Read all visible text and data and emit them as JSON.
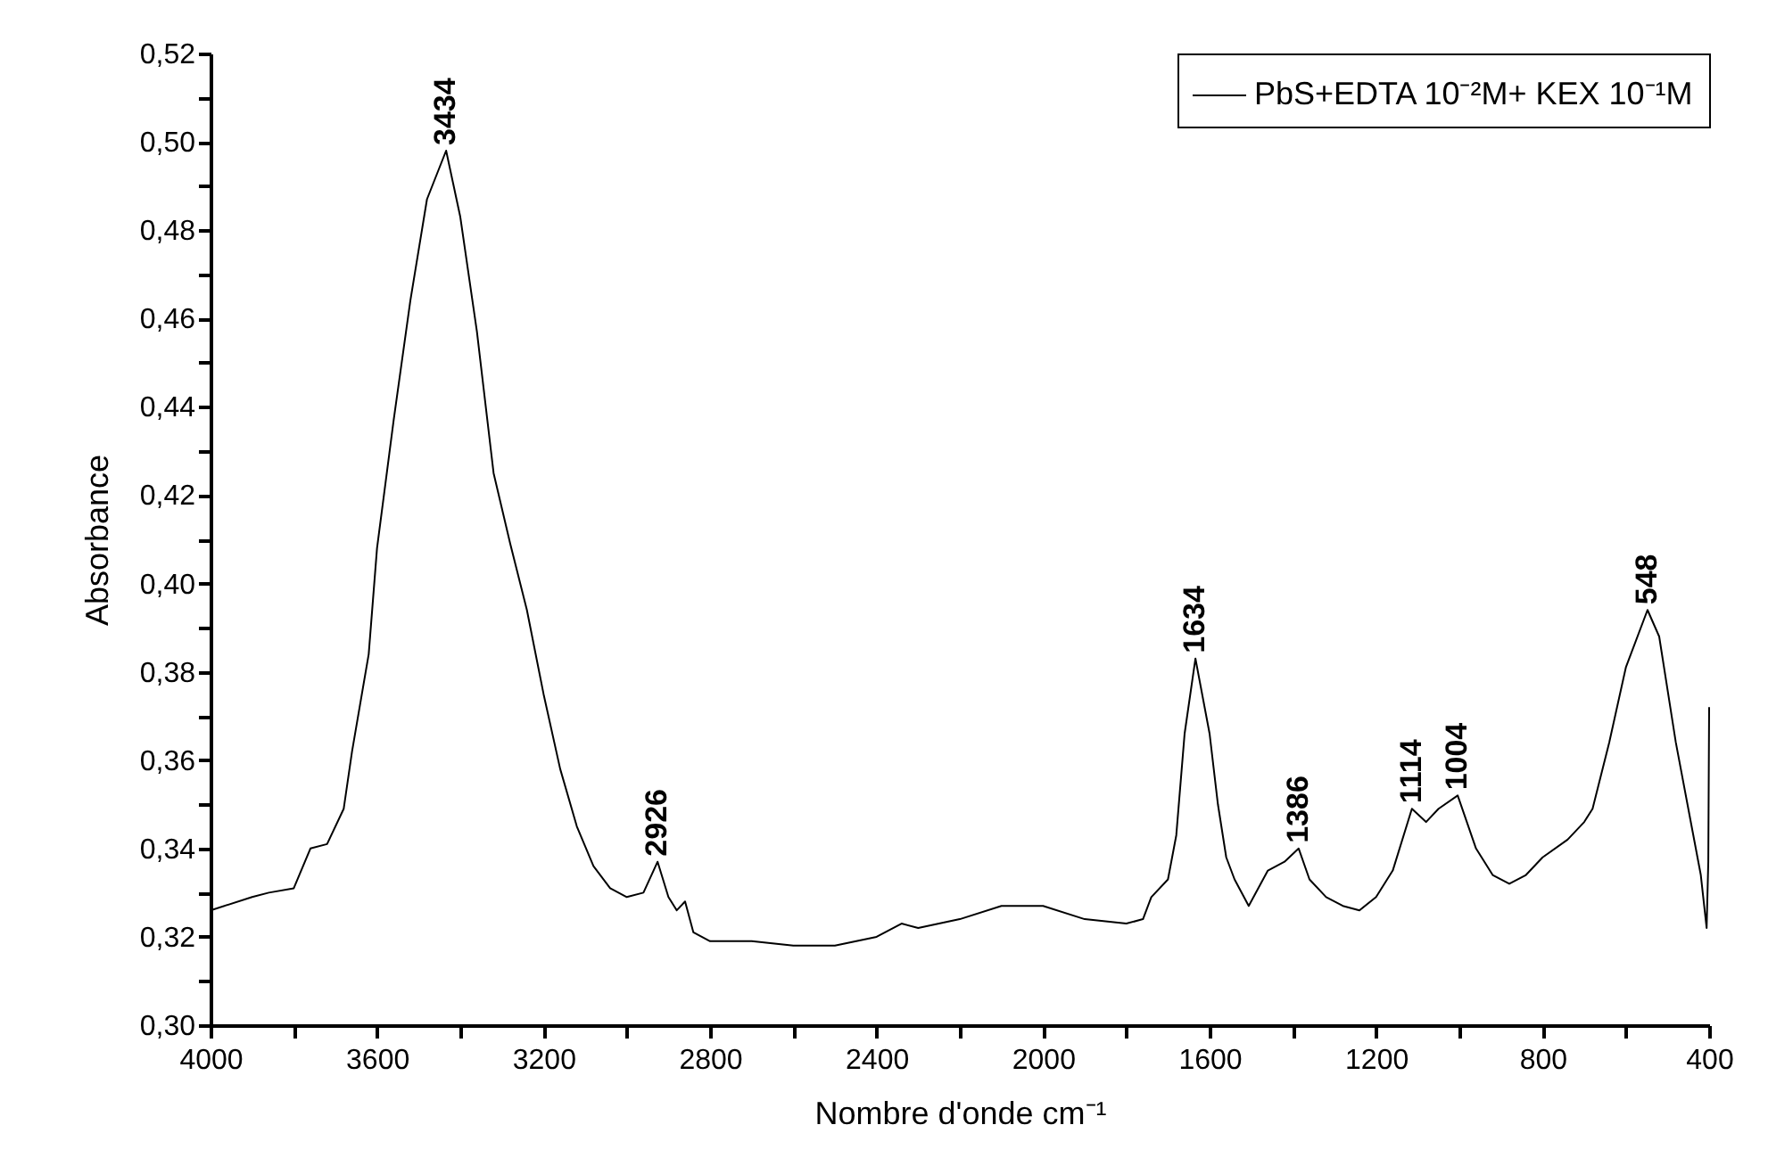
{
  "chart_data": {
    "type": "line",
    "xlabel": "Nombre d'onde cm⁻¹",
    "ylabel": "Absorbance",
    "xlim": [
      4000,
      400
    ],
    "ylim": [
      0.3,
      0.52
    ],
    "xticks": [
      4000,
      {
        "value": 3800,
        "label": null
      },
      3600,
      {
        "value": 3400,
        "label": null
      },
      3200,
      {
        "value": 3000,
        "label": null
      },
      2800,
      {
        "value": 2600,
        "label": null
      },
      2400,
      {
        "value": 2200,
        "label": null
      },
      2000,
      {
        "value": 1800,
        "label": null
      },
      1600,
      {
        "value": 1400,
        "label": null
      },
      1200,
      {
        "value": 1000,
        "label": null
      },
      800,
      {
        "value": 600,
        "label": null
      },
      400
    ],
    "yticks": [
      {
        "value": 0.3,
        "label": "0,30"
      },
      {
        "value": 0.31,
        "label": null
      },
      {
        "value": 0.32,
        "label": "0,32"
      },
      {
        "value": 0.33,
        "label": null
      },
      {
        "value": 0.34,
        "label": "0,34"
      },
      {
        "value": 0.35,
        "label": null
      },
      {
        "value": 0.36,
        "label": "0,36"
      },
      {
        "value": 0.37,
        "label": null
      },
      {
        "value": 0.38,
        "label": "0,38"
      },
      {
        "value": 0.39,
        "label": null
      },
      {
        "value": 0.4,
        "label": "0,40"
      },
      {
        "value": 0.41,
        "label": null
      },
      {
        "value": 0.42,
        "label": "0,42"
      },
      {
        "value": 0.43,
        "label": null
      },
      {
        "value": 0.44,
        "label": "0,44"
      },
      {
        "value": 0.45,
        "label": null
      },
      {
        "value": 0.46,
        "label": "0,46"
      },
      {
        "value": 0.47,
        "label": null
      },
      {
        "value": 0.48,
        "label": "0,48"
      },
      {
        "value": 0.49,
        "label": null
      },
      {
        "value": 0.5,
        "label": "0,50"
      },
      {
        "value": 0.51,
        "label": null
      },
      {
        "value": 0.52,
        "label": "0,52"
      }
    ],
    "grid": false,
    "legend": "top right",
    "series": [
      {
        "name": "PbS+EDTA 10⁻²M+ KEX 10⁻¹M",
        "color": "#000000",
        "x": [
          4000,
          3900,
          3860,
          3800,
          3760,
          3720,
          3680,
          3660,
          3620,
          3600,
          3560,
          3520,
          3480,
          3434,
          3400,
          3360,
          3320,
          3280,
          3240,
          3200,
          3160,
          3120,
          3080,
          3040,
          3000,
          2960,
          2926,
          2900,
          2880,
          2860,
          2840,
          2800,
          2700,
          2600,
          2500,
          2400,
          2340,
          2300,
          2200,
          2100,
          2040,
          2000,
          1900,
          1800,
          1760,
          1740,
          1700,
          1680,
          1660,
          1634,
          1600,
          1580,
          1560,
          1540,
          1506,
          1460,
          1420,
          1386,
          1360,
          1320,
          1280,
          1240,
          1200,
          1160,
          1114,
          1080,
          1050,
          1004,
          960,
          920,
          880,
          840,
          800,
          740,
          700,
          680,
          640,
          600,
          548,
          520,
          480,
          440,
          420,
          406,
          402,
          400
        ],
        "values": [
          0.326,
          0.329,
          0.33,
          0.331,
          0.34,
          0.341,
          0.349,
          0.362,
          0.384,
          0.408,
          0.437,
          0.464,
          0.487,
          0.498,
          0.483,
          0.457,
          0.425,
          0.409,
          0.394,
          0.375,
          0.358,
          0.345,
          0.336,
          0.331,
          0.329,
          0.33,
          0.337,
          0.329,
          0.326,
          0.328,
          0.321,
          0.319,
          0.319,
          0.318,
          0.318,
          0.32,
          0.323,
          0.322,
          0.324,
          0.327,
          0.327,
          0.327,
          0.324,
          0.323,
          0.324,
          0.329,
          0.333,
          0.343,
          0.366,
          0.383,
          0.366,
          0.35,
          0.338,
          0.333,
          0.327,
          0.335,
          0.337,
          0.34,
          0.333,
          0.329,
          0.327,
          0.326,
          0.329,
          0.335,
          0.349,
          0.346,
          0.349,
          0.352,
          0.34,
          0.334,
          0.332,
          0.334,
          0.338,
          0.342,
          0.346,
          0.349,
          0.364,
          0.381,
          0.394,
          0.388,
          0.364,
          0.344,
          0.334,
          0.322,
          0.337,
          0.372
        ]
      }
    ],
    "annotations": [
      {
        "text": "3434",
        "x": 3434,
        "y": 0.498
      },
      {
        "text": "2926",
        "x": 2926,
        "y": 0.337
      },
      {
        "text": "1634",
        "x": 1634,
        "y": 0.383
      },
      {
        "text": "1386",
        "x": 1386,
        "y": 0.34
      },
      {
        "text": "1114",
        "x": 1114,
        "y": 0.349
      },
      {
        "text": "1004",
        "x": 1004,
        "y": 0.352
      },
      {
        "text": "548",
        "x": 548,
        "y": 0.394
      }
    ]
  }
}
